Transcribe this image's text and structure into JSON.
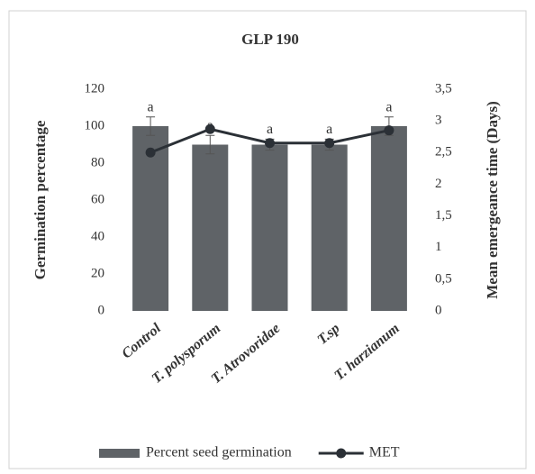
{
  "chart_data": {
    "type": "bar_line",
    "title": "GLP 190",
    "categories": [
      "Control",
      "T. polysporum",
      "T. Atrovoridae",
      "T.sp",
      "T. harzianum"
    ],
    "series": [
      {
        "name": "Percent seed germination",
        "type": "bar",
        "color": "#5f6367",
        "values": [
          100,
          90,
          90,
          90,
          100
        ],
        "errors": [
          5,
          5,
          3,
          3,
          5
        ],
        "annotations": [
          "a",
          "a",
          "a",
          "a",
          "a"
        ]
      },
      {
        "name": "MET",
        "type": "line",
        "axis": "y2",
        "color": "#2b3036",
        "values": [
          2.5,
          2.87,
          2.65,
          2.65,
          2.85
        ]
      }
    ],
    "y_label": "Germination percentage",
    "y2_label": "Mean emergeance time (Days)",
    "ylim": [
      0,
      120
    ],
    "yticks": [
      0,
      20,
      40,
      60,
      80,
      100,
      120
    ],
    "y2lim": [
      0,
      3.5
    ],
    "y2ticks": [
      0,
      {
        "value": 0.5,
        "label": "0,5"
      },
      1,
      {
        "value": 1.5,
        "label": "1,5"
      },
      2,
      {
        "value": 2.5,
        "label": "2,5"
      },
      3,
      {
        "value": 3.5,
        "label": "3,5"
      }
    ],
    "grid": false,
    "legend": "bottom"
  }
}
